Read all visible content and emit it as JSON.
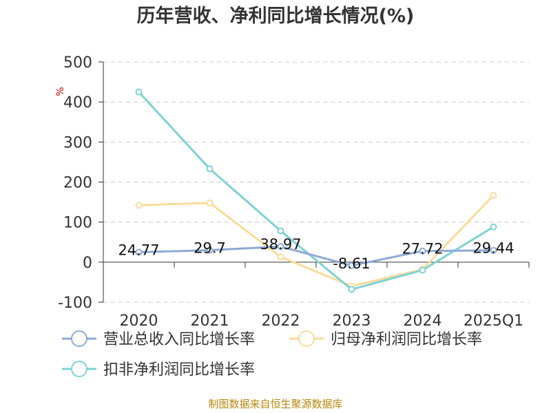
{
  "chart_data": {
    "type": "line",
    "title": "历年营收、净利同比增长情况(%)",
    "ylabel": "%",
    "categories": [
      "2020",
      "2021",
      "2022",
      "2023",
      "2024",
      "2025Q1"
    ],
    "ylim": [
      -100,
      500
    ],
    "yticks": [
      500,
      400,
      300,
      200,
      100,
      0,
      -100
    ],
    "grid": true,
    "legend_position": "bottom",
    "series": [
      {
        "name": "营业总收入同比增长率",
        "color": "#8da9d6",
        "values": [
          24.77,
          29.7,
          38.97,
          -8.61,
          27.72,
          29.44
        ],
        "labels": [
          "24.77",
          "29.7",
          "38.97",
          "-8.61",
          "27.72",
          "29.44"
        ]
      },
      {
        "name": "归母净利润同比增长率",
        "color": "#fadb9a",
        "values": [
          142,
          148,
          13,
          -60,
          -18,
          167
        ]
      },
      {
        "name": "扣非净利润同比增长率",
        "color": "#7fd1d3",
        "values": [
          425,
          233,
          78,
          -68,
          -20,
          88
        ]
      }
    ],
    "source": "制图数据来自恒生聚源数据库"
  }
}
